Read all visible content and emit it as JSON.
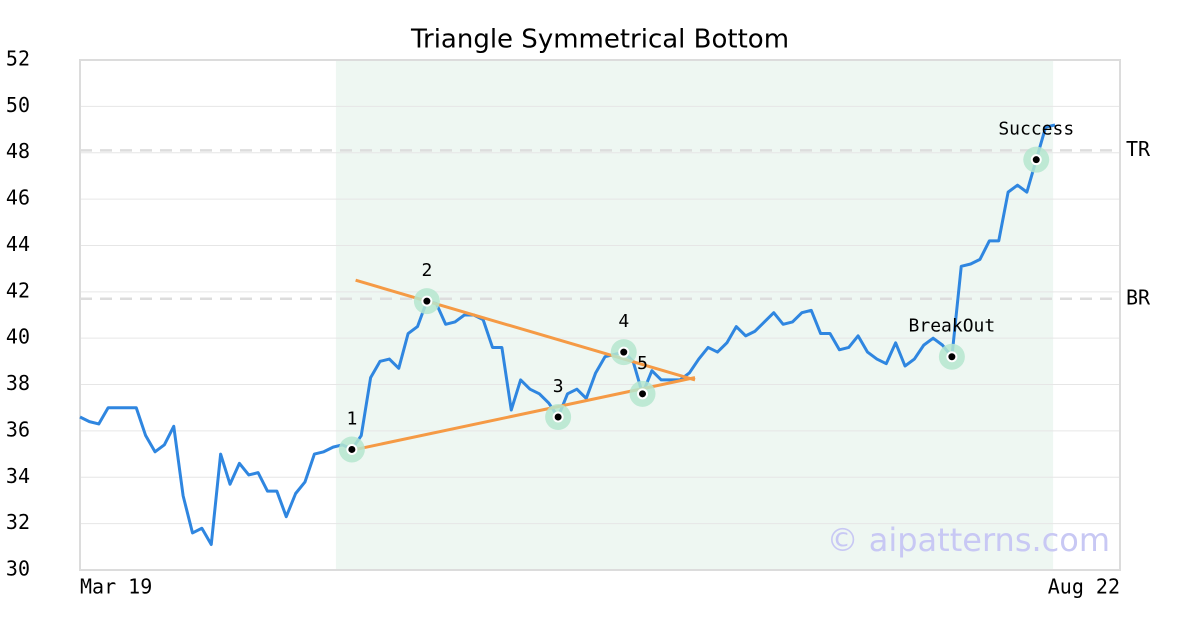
{
  "chart_data": {
    "type": "line",
    "title": "Triangle Symmetrical Bottom",
    "watermark": "© aipatterns.com",
    "categories": [
      "Mar 19",
      null,
      null,
      null,
      null,
      null,
      null,
      null,
      null,
      null,
      null,
      null,
      null,
      null,
      null,
      null,
      null,
      null,
      null,
      null,
      null,
      null,
      null,
      null,
      null,
      null,
      null,
      null,
      null,
      null,
      null,
      null,
      null,
      null,
      null,
      null,
      null,
      null,
      null,
      null,
      null,
      null,
      null,
      null,
      null,
      null,
      null,
      null,
      null,
      null,
      null,
      null,
      null,
      null,
      null,
      null,
      null,
      null,
      null,
      null,
      null,
      null,
      null,
      null,
      null,
      null,
      null,
      null,
      null,
      null,
      null,
      null,
      null,
      null,
      null,
      null,
      null,
      null,
      null,
      null,
      null,
      null,
      null,
      null,
      null,
      null,
      null,
      null,
      null,
      null,
      null,
      null,
      null,
      null,
      null,
      null,
      null,
      null,
      null,
      null,
      null,
      null,
      null,
      null,
      "Aug 22"
    ],
    "series": [
      {
        "color": "#2f86e0",
        "values": [
          36.6,
          36.4,
          36.3,
          37.0,
          37.0,
          37.0,
          37.0,
          35.8,
          35.1,
          35.4,
          36.2,
          33.2,
          31.6,
          31.8,
          31.1,
          35.0,
          33.7,
          34.6,
          34.1,
          34.2,
          33.4,
          33.4,
          32.3,
          33.3,
          33.8,
          35.0,
          35.1,
          35.3,
          35.4,
          35.2,
          35.8,
          38.3,
          39.0,
          39.1,
          38.7,
          40.2,
          40.5,
          41.6,
          41.5,
          40.6,
          40.7,
          41.0,
          41.0,
          40.8,
          39.6,
          39.6,
          36.9,
          38.2,
          37.8,
          37.6,
          37.2,
          36.6,
          37.6,
          37.8,
          37.4,
          38.5,
          39.2,
          39.3,
          39.4,
          39.0,
          37.6,
          38.6,
          38.2,
          38.2,
          38.2,
          38.5,
          39.1,
          39.6,
          39.4,
          39.8,
          40.5,
          40.1,
          40.3,
          40.7,
          41.1,
          40.6,
          40.7,
          41.1,
          41.2,
          40.2,
          40.2,
          39.5,
          39.6,
          40.1,
          39.4,
          39.1,
          38.9,
          39.8,
          38.8,
          39.1,
          39.7,
          40.0,
          39.7,
          39.2,
          43.1,
          43.2,
          43.4,
          44.2,
          44.2,
          46.3,
          46.6,
          46.3,
          47.7,
          49.1,
          49.2
        ]
      }
    ],
    "ylim": [
      30,
      52
    ],
    "yticks": [
      30,
      32,
      34,
      36,
      38,
      40,
      42,
      44,
      46,
      48,
      50,
      52
    ],
    "grid": true,
    "highlight_range": [
      27.3,
      103.8
    ],
    "pattern_points": [
      {
        "text": "1",
        "x": 29,
        "y": 35.2
      },
      {
        "text": "2",
        "x": 37,
        "y": 41.6
      },
      {
        "text": "3",
        "x": 51,
        "y": 36.6
      },
      {
        "text": "4",
        "x": 58,
        "y": 39.4
      },
      {
        "text": "5",
        "x": 60,
        "y": 37.6
      },
      {
        "text": "BreakOut",
        "x": 93,
        "y": 39.2
      },
      {
        "text": "Success",
        "x": 102,
        "y": 47.7
      }
    ],
    "trend_lines": [
      {
        "color": "#f59a45",
        "x": [
          29.4,
          65.6
        ],
        "y": [
          42.5,
          38.2
        ]
      },
      {
        "color": "#f59a45",
        "x": [
          29.4,
          65.6
        ],
        "y": [
          35.2,
          38.3
        ]
      }
    ],
    "levels": [
      {
        "label": "TR",
        "value": 48.1
      },
      {
        "label": "BR",
        "value": 41.7
      }
    ]
  }
}
